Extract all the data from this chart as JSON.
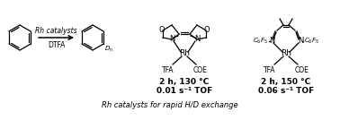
{
  "title": "Rh catalysts for rapid H/D exchange",
  "background_color": "#ffffff",
  "arrow_label_italic": "Rh catalysts",
  "arrow_label_normal": "DTFA",
  "catalyst1_conditions": "2 h, 130 °C",
  "catalyst1_tof": "0.01 s⁻¹ TOF",
  "catalyst2_conditions": "2 h, 150 °C",
  "catalyst2_tof": "0.06 s⁻¹ TOF",
  "cat1_label1": "TFA",
  "cat1_label2": "COE",
  "cat2_label1": "TFA",
  "cat2_label2": "COE",
  "cat1_metal": "Rh",
  "cat2_metal": "Rh",
  "fig_width": 3.78,
  "fig_height": 1.34,
  "dpi": 100
}
